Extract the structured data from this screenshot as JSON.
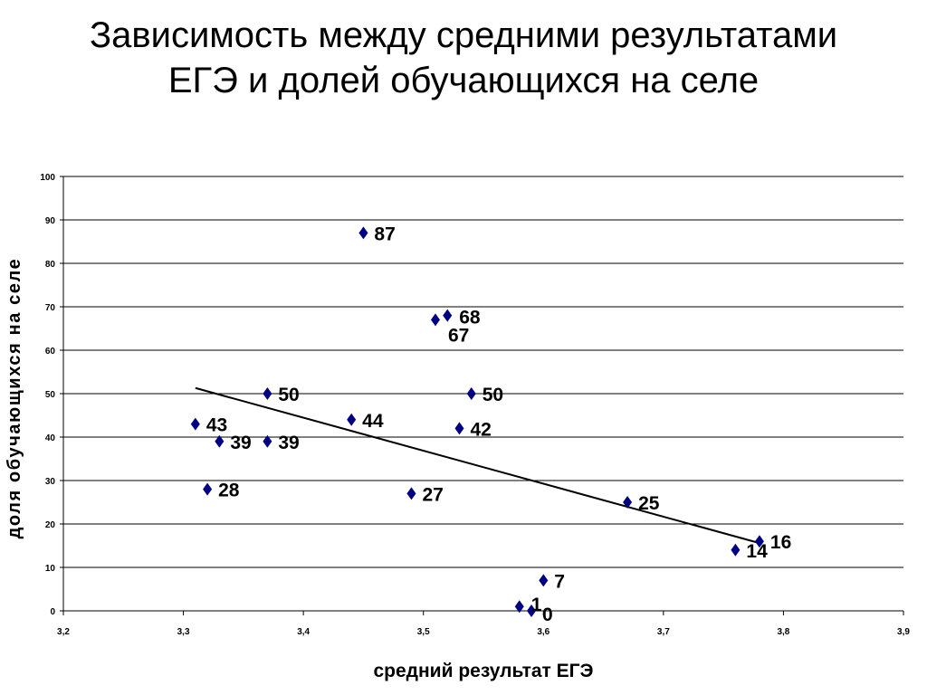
{
  "chart_data": {
    "type": "scatter",
    "title": [
      "Зависимость между средними результатами",
      "ЕГЭ и долей обучающихся на селе"
    ],
    "xlabel": "средний результат ЕГЭ",
    "ylabel": "доля обучающихся на селе",
    "xlim": [
      3.2,
      3.9
    ],
    "ylim": [
      0,
      100
    ],
    "x_ticks": [
      3.2,
      3.3,
      3.4,
      3.5,
      3.6,
      3.7,
      3.8,
      3.9
    ],
    "x_tick_labels": [
      "3,2",
      "3,3",
      "3,4",
      "3,5",
      "3,6",
      "3,7",
      "3,8",
      "3,9"
    ],
    "y_ticks": [
      0,
      10,
      20,
      30,
      40,
      50,
      60,
      70,
      80,
      90,
      100
    ],
    "y_tick_labels": [
      "0",
      "10",
      "20",
      "30",
      "40",
      "50",
      "60",
      "70",
      "80",
      "90",
      "100"
    ],
    "grid": "horizontal",
    "marker": "diamond",
    "marker_color": "#000080",
    "points": [
      {
        "x": 3.45,
        "y": 87,
        "label": "87"
      },
      {
        "x": 3.52,
        "y": 68,
        "label": "68"
      },
      {
        "x": 3.51,
        "y": 67,
        "label": "67"
      },
      {
        "x": 3.37,
        "y": 50,
        "label": "50"
      },
      {
        "x": 3.54,
        "y": 50,
        "label": "50"
      },
      {
        "x": 3.31,
        "y": 43,
        "label": "43"
      },
      {
        "x": 3.33,
        "y": 39,
        "label": "39"
      },
      {
        "x": 3.37,
        "y": 39,
        "label": "39"
      },
      {
        "x": 3.44,
        "y": 44,
        "label": "44"
      },
      {
        "x": 3.53,
        "y": 42,
        "label": "42"
      },
      {
        "x": 3.32,
        "y": 28,
        "label": "28"
      },
      {
        "x": 3.49,
        "y": 27,
        "label": "27"
      },
      {
        "x": 3.67,
        "y": 25,
        "label": "25"
      },
      {
        "x": 3.76,
        "y": 14,
        "label": "14"
      },
      {
        "x": 3.78,
        "y": 16,
        "label": "16"
      },
      {
        "x": 3.6,
        "y": 7,
        "label": "7"
      },
      {
        "x": 3.58,
        "y": 1,
        "label": "1"
      },
      {
        "x": 3.59,
        "y": 0,
        "label": "0"
      }
    ],
    "trendline": {
      "type": "linear",
      "color": "#000000",
      "x": [
        3.31,
        3.78
      ],
      "y": [
        51.3,
        15.6
      ]
    }
  }
}
